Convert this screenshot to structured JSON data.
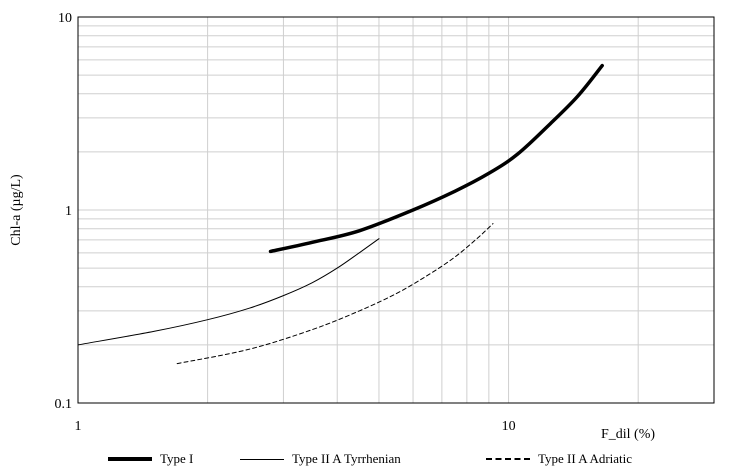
{
  "chart_data": {
    "type": "line",
    "title": "",
    "xlabel": "F_dil (%)",
    "ylabel": "Chl-a (µg/L)",
    "x_scale": "log",
    "y_scale": "log",
    "xlim": [
      1,
      30
    ],
    "ylim": [
      0.1,
      10
    ],
    "x_ticks": [
      1,
      10
    ],
    "x_tick_labels": [
      "1",
      "10"
    ],
    "y_ticks": [
      0.1,
      1,
      10
    ],
    "y_tick_labels": [
      "0.1",
      "1",
      "10"
    ],
    "grid": "major and minor",
    "legend_position": "bottom",
    "series": [
      {
        "name": "Type I",
        "style": "thick-solid",
        "color": "#000000",
        "x": [
          2.8,
          3.5,
          4.5,
          6,
          7.5,
          9,
          10.5,
          12.5,
          14.5,
          16.5
        ],
        "y": [
          0.61,
          0.68,
          0.78,
          1.0,
          1.25,
          1.55,
          1.95,
          2.8,
          3.9,
          5.6
        ]
      },
      {
        "name": "Type II A Tyrrhenian",
        "style": "thin-solid",
        "color": "#000000",
        "x": [
          1,
          1.5,
          2,
          2.5,
          3,
          3.5,
          4,
          4.5,
          5
        ],
        "y": [
          0.2,
          0.235,
          0.27,
          0.31,
          0.36,
          0.42,
          0.5,
          0.6,
          0.71
        ]
      },
      {
        "name": "Type II A Adriatic",
        "style": "dashed",
        "color": "#000000",
        "x": [
          1.7,
          2.5,
          3.5,
          4.5,
          5.5,
          6.5,
          7.5,
          8.5,
          9.2
        ],
        "y": [
          0.16,
          0.19,
          0.24,
          0.3,
          0.37,
          0.46,
          0.57,
          0.72,
          0.85
        ]
      }
    ]
  }
}
